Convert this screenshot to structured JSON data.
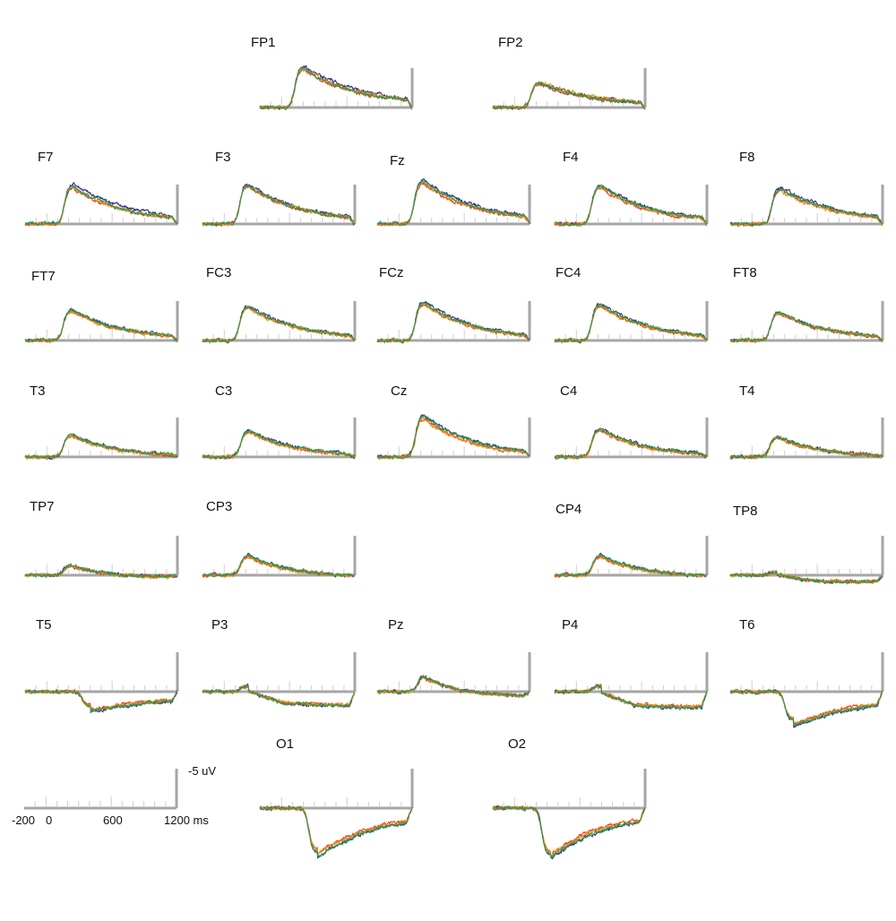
{
  "chart_data": {
    "type": "line",
    "title": "",
    "xlabel": "",
    "ylabel": "",
    "polarity": "negative up",
    "colors": [
      "#2b2d8c",
      "#e8401c",
      "#ef8a17",
      "#2e9a4a"
    ],
    "scale_bar": {
      "amplitude_label": "-5 uV",
      "time_ticks": [
        "-200",
        "0",
        "600",
        "1200 ms"
      ]
    },
    "channels": [
      {
        "name": "FP1",
        "peak": 9.5,
        "latency": 200,
        "tail": 0.15,
        "spread": [
          0.1,
          0.0,
          0.04,
          0.02
        ]
      },
      {
        "name": "FP2",
        "peak": 6.0,
        "latency": 230,
        "tail": 0.1,
        "spread": [
          0.04,
          -0.03,
          0.06,
          0.01
        ]
      },
      {
        "name": "F7",
        "peak": 9.0,
        "latency": 240,
        "tail": 0.1,
        "spread": [
          0.12,
          0.0,
          0.02,
          0.03
        ]
      },
      {
        "name": "F3",
        "peak": 9.5,
        "latency": 220,
        "tail": 0.1,
        "spread": [
          0.06,
          0.0,
          0.03,
          0.02
        ]
      },
      {
        "name": "Fz",
        "peak": 10.5,
        "latency": 220,
        "tail": 0.12,
        "spread": [
          0.08,
          -0.02,
          0.01,
          0.04
        ]
      },
      {
        "name": "F4",
        "peak": 9.5,
        "latency": 220,
        "tail": 0.08,
        "spread": [
          0.05,
          -0.04,
          0.0,
          0.03
        ]
      },
      {
        "name": "F8",
        "peak": 8.5,
        "latency": 260,
        "tail": 0.12,
        "spread": [
          0.08,
          0.0,
          -0.02,
          0.04
        ]
      },
      {
        "name": "FT7",
        "peak": 7.5,
        "latency": 230,
        "tail": 0.05,
        "spread": [
          0.04,
          0.0,
          -0.02,
          0.02
        ]
      },
      {
        "name": "FC3",
        "peak": 8.5,
        "latency": 220,
        "tail": 0.06,
        "spread": [
          0.04,
          0.0,
          -0.02,
          0.02
        ]
      },
      {
        "name": "FCz",
        "peak": 9.5,
        "latency": 230,
        "tail": 0.06,
        "spread": [
          0.05,
          -0.03,
          -0.02,
          0.02
        ]
      },
      {
        "name": "FC4",
        "peak": 9.0,
        "latency": 220,
        "tail": 0.05,
        "spread": [
          0.05,
          -0.02,
          -0.01,
          0.03
        ]
      },
      {
        "name": "FT8",
        "peak": 7.0,
        "latency": 250,
        "tail": 0.04,
        "spread": [
          0.02,
          -0.02,
          0.0,
          0.01
        ]
      },
      {
        "name": "T3",
        "peak": 5.5,
        "latency": 230,
        "tail": -0.02,
        "spread": [
          0.04,
          -0.01,
          -0.04,
          0.03
        ]
      },
      {
        "name": "C3",
        "peak": 6.5,
        "latency": 230,
        "tail": 0.0,
        "spread": [
          0.03,
          -0.02,
          -0.03,
          0.02
        ]
      },
      {
        "name": "Cz",
        "peak": 10.0,
        "latency": 230,
        "tail": 0.05,
        "spread": [
          0.06,
          -0.03,
          -0.04,
          0.04
        ]
      },
      {
        "name": "C4",
        "peak": 7.0,
        "latency": 220,
        "tail": 0.0,
        "spread": [
          0.04,
          -0.02,
          -0.02,
          0.03
        ]
      },
      {
        "name": "T4",
        "peak": 5.0,
        "latency": 240,
        "tail": -0.02,
        "spread": [
          0.02,
          -0.02,
          -0.01,
          0.02
        ]
      },
      {
        "name": "TP7",
        "peak": 2.5,
        "latency": 230,
        "tail": -0.12,
        "spread": [
          0.04,
          -0.04,
          -0.05,
          0.03
        ]
      },
      {
        "name": "CP3",
        "peak": 5.0,
        "latency": 230,
        "tail": -0.1,
        "spread": [
          0.03,
          -0.05,
          -0.06,
          0.03
        ]
      },
      {
        "name": "CP4",
        "peak": 5.0,
        "latency": 230,
        "tail": -0.1,
        "spread": [
          0.03,
          -0.06,
          -0.05,
          0.03
        ]
      },
      {
        "name": "TP8",
        "peak": 0.8,
        "latency": 230,
        "tail": -0.3,
        "spread": [
          0.02,
          -0.04,
          -0.05,
          0.03
        ]
      },
      {
        "name": "T5",
        "peak": -3.5,
        "latency": 400,
        "tail": -0.3,
        "spread": [
          0.04,
          -0.06,
          -0.03,
          0.03
        ]
      },
      {
        "name": "P3",
        "peak": 1.5,
        "latency": 220,
        "tail": -0.6,
        "spread": [
          0.04,
          -0.06,
          -0.05,
          0.03
        ]
      },
      {
        "name": "Pz",
        "peak": 4.0,
        "latency": 250,
        "tail": -0.25,
        "spread": [
          0.04,
          -0.06,
          -0.05,
          0.03
        ]
      },
      {
        "name": "P4",
        "peak": 1.5,
        "latency": 230,
        "tail": -0.7,
        "spread": [
          0.04,
          -0.07,
          -0.06,
          0.04
        ]
      },
      {
        "name": "T6",
        "peak": -7.0,
        "latency": 380,
        "tail": -0.4,
        "spread": [
          0.03,
          -0.05,
          -0.03,
          0.02
        ]
      },
      {
        "name": "O1",
        "peak": -11.0,
        "latency": 330,
        "tail": -0.35,
        "spread": [
          0.03,
          -0.06,
          -0.03,
          0.02
        ]
      },
      {
        "name": "O2",
        "peak": -11.5,
        "latency": 330,
        "tail": -0.3,
        "spread": [
          0.03,
          -0.06,
          -0.03,
          0.02
        ]
      }
    ]
  }
}
